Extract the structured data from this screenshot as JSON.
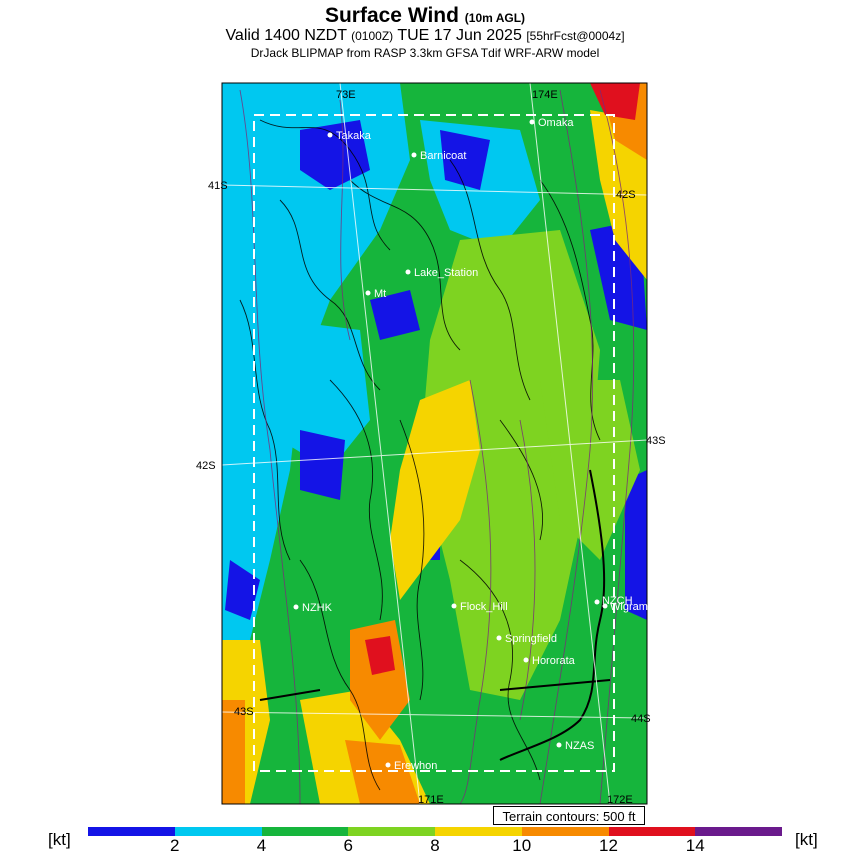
{
  "title": {
    "main": "Surface Wind",
    "main_sub": "(10m AGL)",
    "valid_prefix": "Valid 1400 NZDT",
    "valid_utc": "(0100Z)",
    "valid_date": "TUE 17 Jun 2025",
    "forecast": "[55hrFcst@0004z]",
    "source": "DrJack BLIPMAP from RASP 3.3km GFSA Tdif WRF-ARW model"
  },
  "grid_labels": {
    "lon_top_left": "73E",
    "lon_top_right": "174E",
    "lon_bottom_mid": "171E",
    "lon_bottom_right": "172E",
    "lat_41s": "41S",
    "lat_42s_left": "42S",
    "lat_42s_right": "42S",
    "lat_43s_left": "43S",
    "lat_43s_right": "43S",
    "lat_44s": "44S"
  },
  "places": [
    {
      "name": "Takaka"
    },
    {
      "name": "Barnicoat"
    },
    {
      "name": "Omaka"
    },
    {
      "name": "Lake_Station"
    },
    {
      "name": "Mt"
    },
    {
      "name": "NZHK"
    },
    {
      "name": "Flock_Hill"
    },
    {
      "name": "Springfield"
    },
    {
      "name": "Hororata"
    },
    {
      "name": "NZCH"
    },
    {
      "name": "Wigram"
    },
    {
      "name": "NZAS"
    },
    {
      "name": "Erewhon"
    }
  ],
  "terrain_note": "Terrain contours: 500 ft",
  "colorbar": {
    "unit_left": "[kt]",
    "unit_right": "[kt]",
    "tick_labels": [
      "2",
      "4",
      "6",
      "8",
      "10",
      "12",
      "14"
    ],
    "colors": [
      "#1414e6",
      "#00c8f0",
      "#16b53c",
      "#7ed321",
      "#f5d400",
      "#f78a00",
      "#e0101e",
      "#6a1a8c"
    ]
  }
}
